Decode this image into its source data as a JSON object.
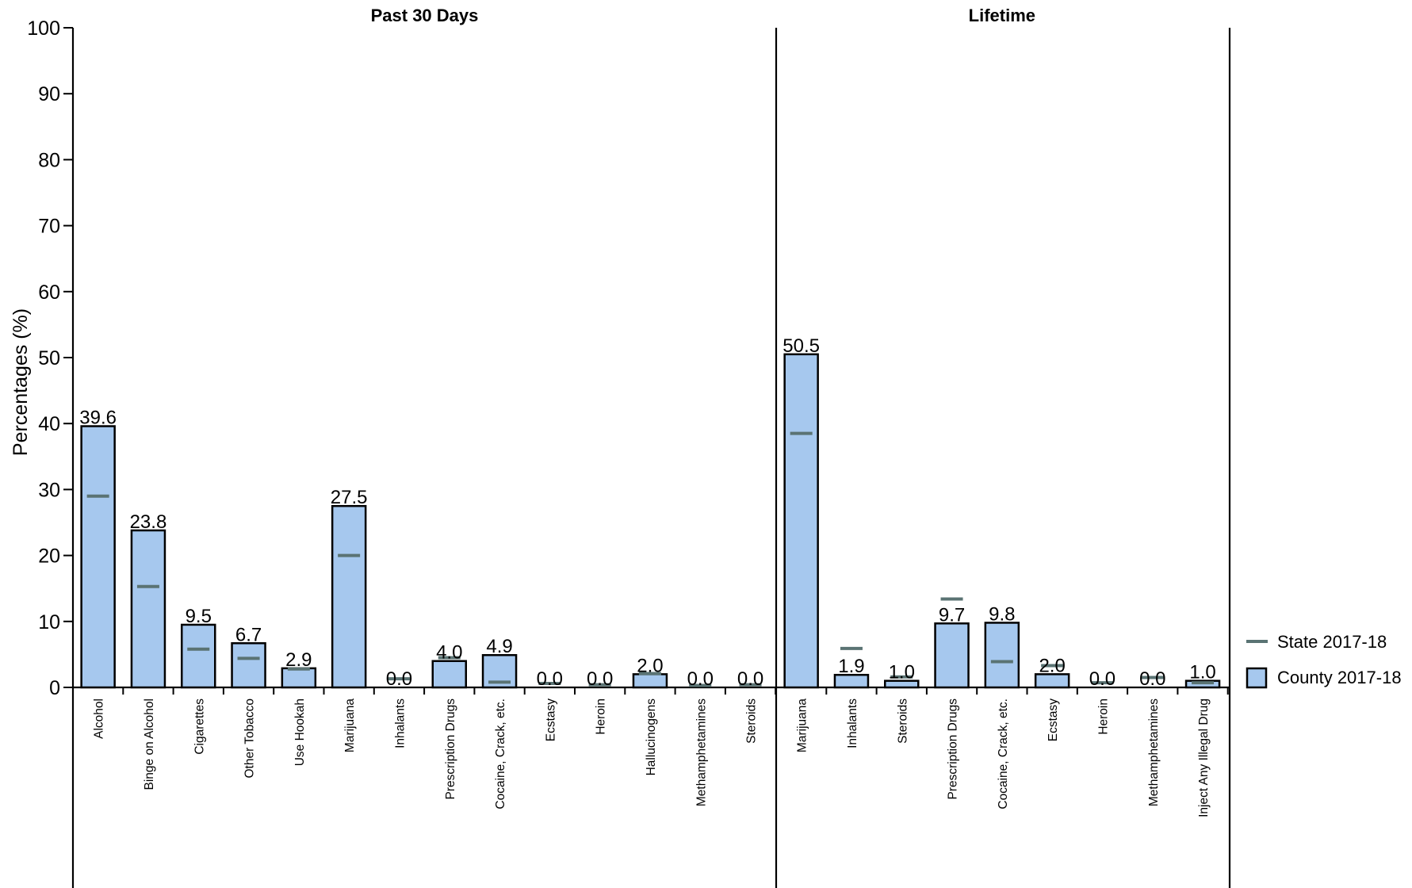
{
  "chart_data": {
    "type": "bar",
    "ylabel": "Percentages (%)",
    "ylim": [
      0,
      100
    ],
    "yticks": [
      0,
      10,
      20,
      30,
      40,
      50,
      60,
      70,
      80,
      90,
      100
    ],
    "grid": false,
    "legend_position": "right",
    "legend": [
      {
        "key": "state",
        "label": "State 2017-18",
        "style": "line"
      },
      {
        "key": "county",
        "label": "County 2017-18",
        "style": "box"
      }
    ],
    "colors": {
      "county_fill": "#a6c8ee",
      "state_mark": "#5a7373",
      "axis": "#000000"
    },
    "panels": [
      {
        "title": "Past 30 Days",
        "categories": [
          "Alcohol",
          "Binge on Alcohol",
          "Cigarettes",
          "Other Tobacco",
          "Use Hookah",
          "Marijuana",
          "Inhalants",
          "Prescription Drugs",
          "Cocaine, Crack, etc.",
          "Ecstasy",
          "Heroin",
          "Hallucinogens",
          "Methamphetamines",
          "Steroids"
        ],
        "series": [
          {
            "name": "County 2017-18",
            "values": [
              39.6,
              23.8,
              9.5,
              6.7,
              2.9,
              27.5,
              0.0,
              4.0,
              4.9,
              0.0,
              0.0,
              2.0,
              0.0,
              0.0
            ]
          },
          {
            "name": "State 2017-18",
            "values": [
              29.0,
              15.3,
              5.8,
              4.4,
              2.8,
              20.0,
              1.3,
              4.5,
              0.8,
              0.6,
              0.4,
              2.1,
              0.3,
              0.4
            ]
          }
        ],
        "labels": [
          "39.6",
          "23.8",
          "9.5",
          "6.7",
          "2.9",
          "27.5",
          "0.0",
          "4.0",
          "4.9",
          "0.0",
          "0.0",
          "2.0",
          "0.0",
          "0.0"
        ]
      },
      {
        "title": "Lifetime",
        "categories": [
          "Marijuana",
          "Inhalants",
          "Steroids",
          "Prescription Drugs",
          "Cocaine, Crack, etc.",
          "Ecstasy",
          "Heroin",
          "Methamphetamines",
          "Inject Any Illegal Drug"
        ],
        "series": [
          {
            "name": "County 2017-18",
            "values": [
              50.5,
              1.9,
              1.0,
              9.7,
              9.8,
              2.0,
              0.0,
              0.0,
              1.0
            ]
          },
          {
            "name": "State 2017-18",
            "values": [
              38.5,
              5.9,
              1.6,
              13.4,
              3.9,
              3.3,
              0.7,
              1.5,
              0.7
            ]
          }
        ],
        "labels": [
          "50.5",
          "1.9",
          "1.0",
          "9.7",
          "9.8",
          "2.0",
          "0.0",
          "0.0",
          "1.0"
        ]
      }
    ]
  }
}
